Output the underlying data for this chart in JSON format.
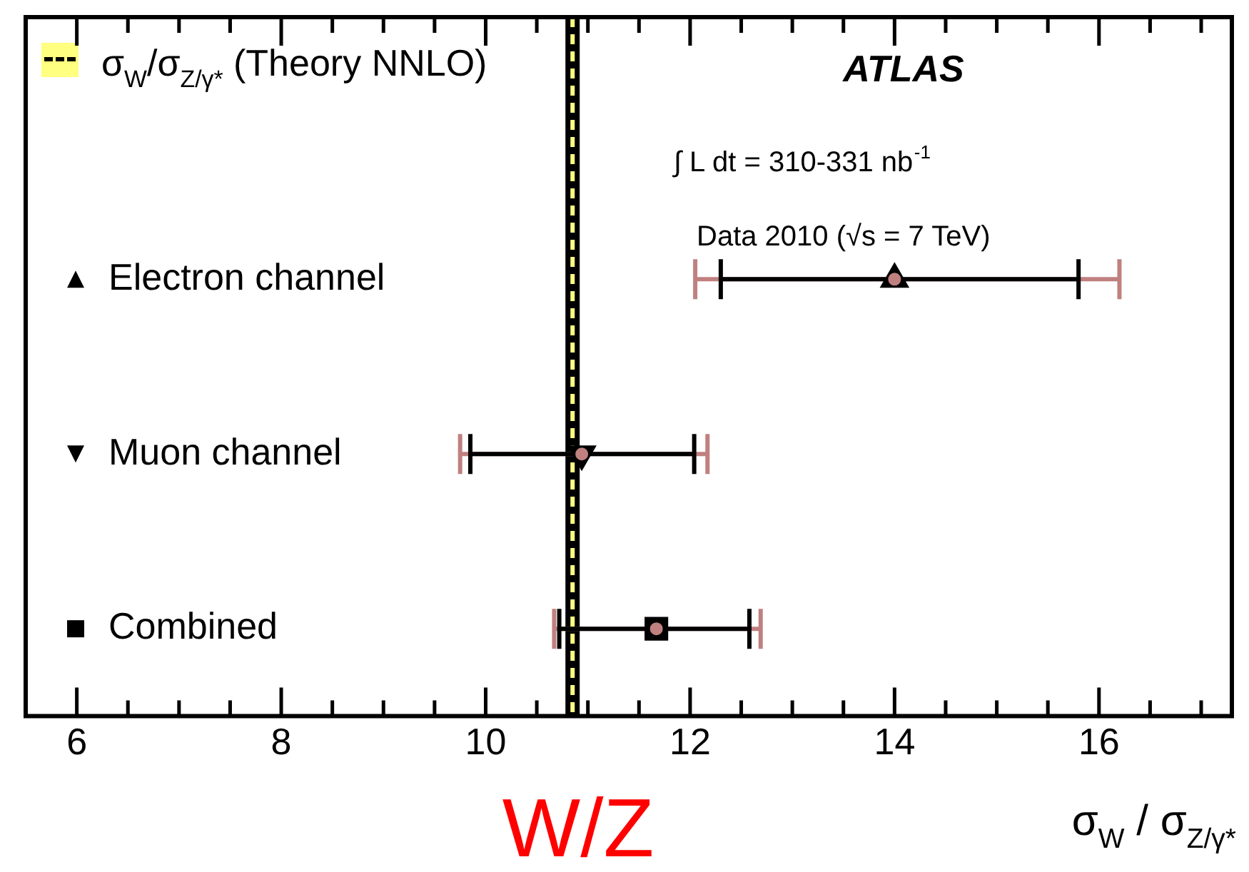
{
  "chart_data": {
    "type": "scatter",
    "orientation": "horizontal",
    "xlabel": "σ$_{W}$ / σ$_{Z/γ*}$",
    "categories": [
      null,
      null,
      null,
      null
    ],
    "series": [
      {
        "color": "#c08080",
        "marker": "circle",
        "values": [
          null,
          14.0,
          10.94,
          11.67
        ],
        "errors": [
          null,
          [
            12.05,
            16.2
          ],
          [
            9.75,
            12.17
          ],
          [
            10.67,
            12.69
          ]
        ]
      },
      {
        "name": "Electron channel",
        "color": "#000000",
        "marker": "triangle",
        "values": [
          null,
          14.0,
          null,
          null
        ],
        "errors": [
          null,
          [
            12.3,
            15.8
          ],
          null,
          null
        ]
      },
      {
        "name": "Muon channel",
        "color": "#000000",
        "marker": "triangle-down",
        "values": [
          null,
          null,
          10.94,
          null
        ],
        "errors": [
          null,
          null,
          [
            9.85,
            12.04
          ],
          null
        ]
      },
      {
        "name": "Combined",
        "color": "#000000",
        "marker": "square",
        "values": [
          null,
          null,
          null,
          11.67
        ],
        "errors": [
          null,
          null,
          null,
          [
            10.72,
            12.58
          ]
        ]
      }
    ],
    "ref_lines": [
      {
        "axis": "x",
        "value": 10.85,
        "color": "#000000"
      },
      {
        "axis": "x",
        "value": 10.85,
        "label": "σ$_{W}$/σ$_{Z/γ*}$ (Theory NNLO)",
        "line_style": "dashed",
        "color": "#ffff80"
      }
    ],
    "annotations": [
      "ATLAS",
      "∫ L dt = 310-331 nb$^{-1}$",
      "Data 2010 (√s = 7 TeV)",
      "W/Z"
    ],
    "xlim": [
      5.5,
      17.3
    ],
    "xticks": [
      6,
      {
        "value": 6.5,
        "label": null
      },
      {
        "value": 7,
        "label": null
      },
      {
        "value": 7.5,
        "label": null
      },
      8,
      {
        "value": 8.5,
        "label": null
      },
      {
        "value": 9,
        "label": null
      },
      {
        "value": 9.5,
        "label": null
      },
      10,
      {
        "value": 10.5,
        "label": null
      },
      {
        "value": 11,
        "label": null
      },
      {
        "value": 11.5,
        "label": null
      },
      12,
      {
        "value": 12.5,
        "label": null
      },
      {
        "value": 13,
        "label": null
      },
      {
        "value": 13.5,
        "label": null
      },
      14,
      {
        "value": 14.5,
        "label": null
      },
      {
        "value": 15,
        "label": null
      },
      {
        "value": 15.5,
        "label": null
      },
      16,
      {
        "value": 16.5,
        "label": null
      },
      {
        "value": 17,
        "label": null
      }
    ],
    "legend": "left",
    "grid": false
  }
}
